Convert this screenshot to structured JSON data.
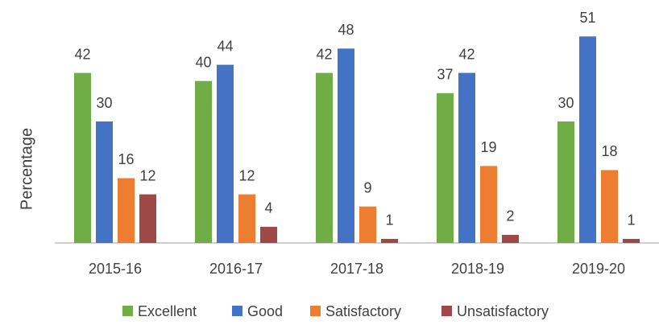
{
  "chart_data": {
    "type": "bar",
    "y_label": "Percentage",
    "categories": [
      "2015-16",
      "2016-17",
      "2017-18",
      "2018-19",
      "2019-20"
    ],
    "series": [
      {
        "name": "Excellent",
        "color": "#70ad47",
        "values": [
          42,
          40,
          42,
          37,
          30
        ]
      },
      {
        "name": "Good",
        "color": "#4472c4",
        "values": [
          30,
          44,
          48,
          42,
          51
        ]
      },
      {
        "name": "Satisfactory",
        "color": "#ed7d31",
        "values": [
          16,
          12,
          9,
          19,
          18
        ]
      },
      {
        "name": "Unsatisfactory",
        "color": "#9e4848",
        "values": [
          12,
          4,
          1,
          2,
          1
        ]
      }
    ],
    "ylim": [
      0,
      60
    ],
    "legend": "bottom"
  }
}
